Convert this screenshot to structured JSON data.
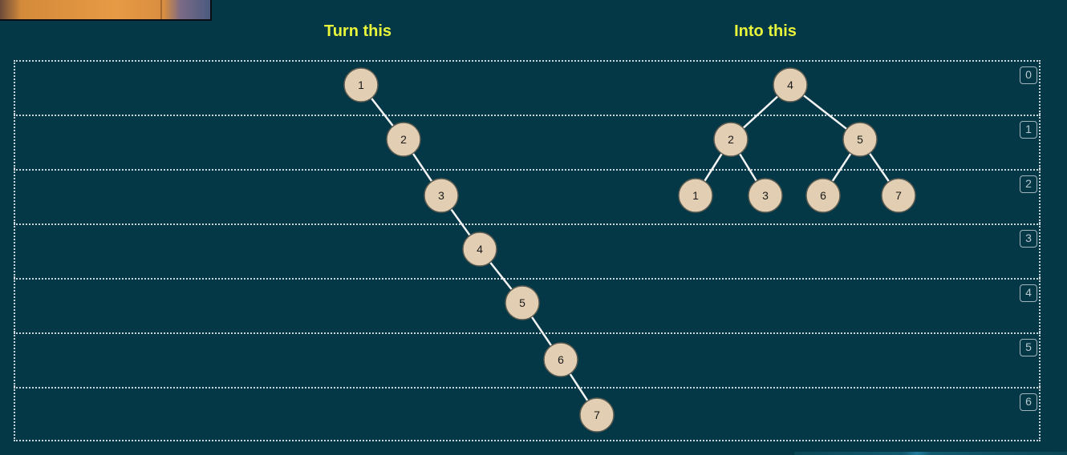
{
  "titles": {
    "left": "Turn this",
    "right": "Into this"
  },
  "levels": [
    "0",
    "1",
    "2",
    "3",
    "4",
    "5",
    "6"
  ],
  "colors": {
    "background": "#043846",
    "title": "#e8f53a",
    "node_fill": "#e2cfb3",
    "edge": "#f3f3f3"
  },
  "left_tree": {
    "nodes": [
      {
        "id": "L1",
        "label": "1",
        "level": 0,
        "parent": null
      },
      {
        "id": "L2",
        "label": "2",
        "level": 1,
        "parent": "L1"
      },
      {
        "id": "L3",
        "label": "3",
        "level": 2,
        "parent": "L2"
      },
      {
        "id": "L4",
        "label": "4",
        "level": 3,
        "parent": "L3"
      },
      {
        "id": "L5",
        "label": "5",
        "level": 4,
        "parent": "L4"
      },
      {
        "id": "L6",
        "label": "6",
        "level": 5,
        "parent": "L5"
      },
      {
        "id": "L7",
        "label": "7",
        "level": 6,
        "parent": "L6"
      }
    ]
  },
  "right_tree": {
    "nodes": [
      {
        "id": "R4",
        "label": "4",
        "level": 0,
        "parent": null
      },
      {
        "id": "R2",
        "label": "2",
        "level": 1,
        "parent": "R4"
      },
      {
        "id": "R5",
        "label": "5",
        "level": 1,
        "parent": "R4"
      },
      {
        "id": "R1",
        "label": "1",
        "level": 2,
        "parent": "R2"
      },
      {
        "id": "R3",
        "label": "3",
        "level": 2,
        "parent": "R2"
      },
      {
        "id": "R6",
        "label": "6",
        "level": 2,
        "parent": "R5"
      },
      {
        "id": "R7",
        "label": "7",
        "level": 2,
        "parent": "R5"
      }
    ]
  }
}
